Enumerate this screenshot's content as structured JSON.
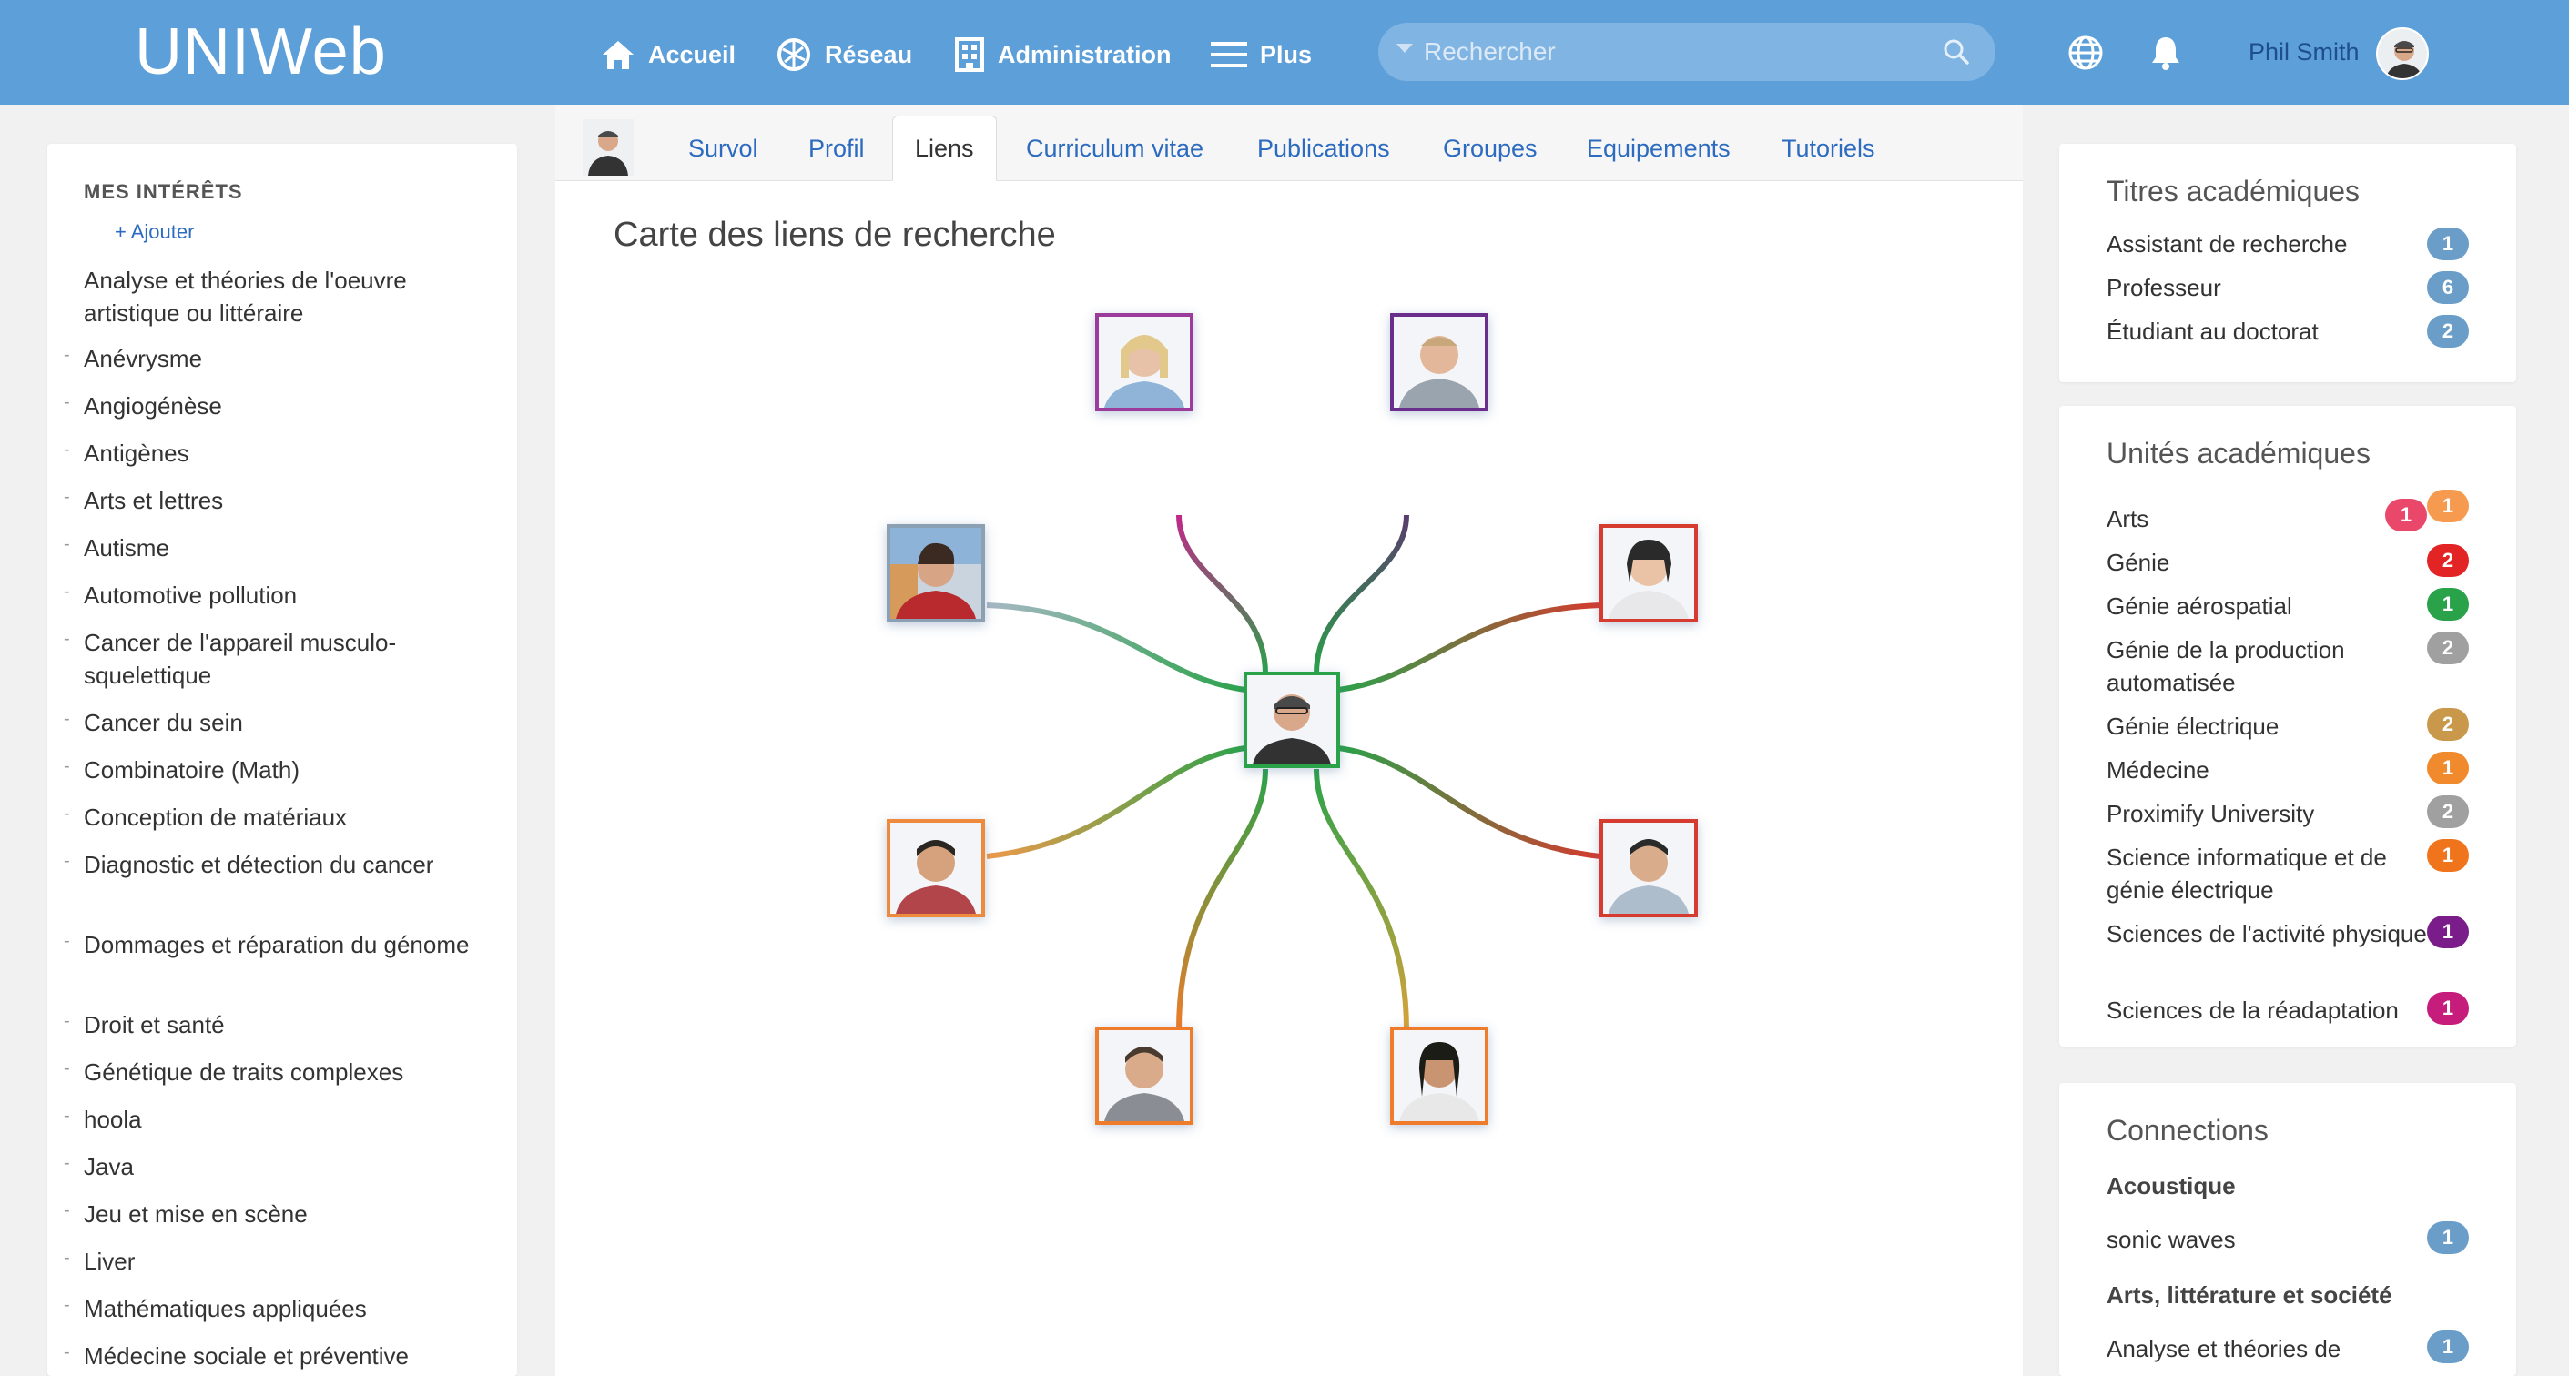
{
  "app": {
    "logo": "UNIWeb"
  },
  "nav": [
    {
      "label": "Accueil",
      "icon": "home-icon"
    },
    {
      "label": "Réseau",
      "icon": "network-icon"
    },
    {
      "label": "Administration",
      "icon": "building-icon"
    },
    {
      "label": "Plus",
      "icon": "hamburger-icon"
    }
  ],
  "search": {
    "placeholder": "Rechercher"
  },
  "user": {
    "name": "Phil Smith"
  },
  "interests": {
    "title": "MES INTÉRÊTS",
    "add_label": "+ Ajouter",
    "items": [
      "Analyse et théories de l'oeuvre artistique ou littéraire",
      "Anévrysme",
      "Angiogénèse",
      "Antigènes",
      "Arts et lettres",
      "Autisme",
      "Automotive pollution",
      "Cancer de l'appareil musculo-squelettique",
      "Cancer du sein",
      "Combinatoire (Math)",
      "Conception de matériaux",
      "Diagnostic et détection du cancer",
      "Dommages et réparation du génome",
      "Droit et santé",
      "Génétique de traits complexes",
      "hoola",
      "Java",
      "Jeu et mise en scène",
      "Liver",
      "Mathématiques appliquées",
      "Médecine sociale et préventive"
    ]
  },
  "tabs": [
    "Survol",
    "Profil",
    "Liens",
    "Curriculum vitae",
    "Publications",
    "Groupes",
    "Equipements",
    "Tutoriels"
  ],
  "active_tab": "Liens",
  "center": {
    "title": "Carte des liens de recherche"
  },
  "link_map": {
    "center_border": "#2aa24a",
    "nodes": [
      {
        "border": "#9b3a9b"
      },
      {
        "border": "#6b2d8c"
      },
      {
        "border": "#d53a2e"
      },
      {
        "border": "#d53a2e"
      },
      {
        "border": "#ee7c2a"
      },
      {
        "border": "#ee7c2a"
      },
      {
        "border": "#ee8a3c"
      },
      {
        "border": "#8ca0b4"
      }
    ]
  },
  "titres": {
    "title": "Titres académiques",
    "items": [
      {
        "label": "Assistant de recherche",
        "count": "1",
        "color": "#6a9ec9"
      },
      {
        "label": "Professeur",
        "count": "6",
        "color": "#6a9ec9"
      },
      {
        "label": "Étudiant au doctorat",
        "count": "2",
        "color": "#6a9ec9"
      }
    ]
  },
  "unites": {
    "title": "Unités académiques",
    "items": [
      {
        "label": "Arts",
        "count": "1",
        "color": "#e9486b",
        "count2": "1",
        "color2": "#f59a4f"
      },
      {
        "label": "Génie",
        "count": "2",
        "color": "#e32424"
      },
      {
        "label": "Génie aérospatial",
        "count": "1",
        "color": "#2aa24a"
      },
      {
        "label": "Génie de la production automatisée",
        "count": "2",
        "color": "#a0a0a0"
      },
      {
        "label": "Génie électrique",
        "count": "2",
        "color": "#c9984a"
      },
      {
        "label": "Médecine",
        "count": "1",
        "color": "#f08a2c"
      },
      {
        "label": "Proximify University",
        "count": "2",
        "color": "#a0a0a0"
      },
      {
        "label": "Science informatique et de génie électrique",
        "count": "1",
        "color": "#f0741c"
      },
      {
        "label": "Sciences de l'activité physique",
        "count": "1",
        "color": "#7a1c8a"
      },
      {
        "label": "Sciences de la réadaptation",
        "count": "1",
        "color": "#c61d7d"
      }
    ]
  },
  "connections": {
    "title": "Connections",
    "groups": [
      {
        "label": "Acoustique",
        "items": [
          {
            "label": "sonic waves",
            "count": "1",
            "color": "#6a9ec9"
          }
        ]
      },
      {
        "label": "Arts, littérature et société",
        "items": [
          {
            "label": "Analyse et théories de",
            "count": "1",
            "color": "#6a9ec9"
          }
        ]
      }
    ]
  }
}
